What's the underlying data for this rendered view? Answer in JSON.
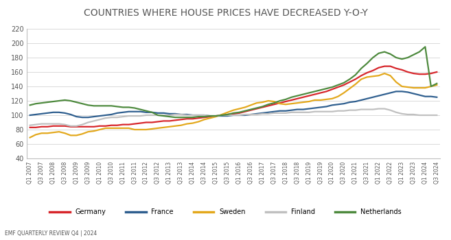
{
  "chart_data": {
    "type": "line",
    "title": "COUNTRIES WHERE HOUSE PRICES HAVE DECREASED Y-O-Y",
    "footer": "EMF QUARTERLY REVIEW Q4 | 2024",
    "categories": [
      "Q1 2007",
      null,
      "Q3 2007",
      null,
      "Q1 2008",
      null,
      "Q3 2008",
      null,
      "Q1 2009",
      null,
      "Q3 2009",
      null,
      "Q1 2010",
      null,
      "Q3 2010",
      null,
      "Q1 2011",
      null,
      "Q3 2011",
      null,
      "Q1 2012",
      null,
      "Q3 2012",
      null,
      "Q1 2013",
      null,
      "Q3 2013",
      null,
      "Q1 2014",
      null,
      "Q3 2014",
      null,
      "Q1 2015",
      null,
      "Q3 2015",
      null,
      "Q1 2016",
      null,
      "Q3 2016",
      null,
      "Q1 2017",
      null,
      "Q3 2017",
      null,
      "Q1 2018",
      null,
      "Q3 2018",
      null,
      "Q1 2019",
      null,
      "Q3 2019",
      null,
      "Q1 2020",
      null,
      "Q3 2020",
      null,
      "Q1 2021",
      null,
      "Q3 2021",
      null,
      "Q1 2022",
      null,
      "Q3 2022",
      null,
      "Q1 2023",
      null,
      "Q3 2023",
      null,
      "Q1 2024",
      null,
      "Q3 2024"
    ],
    "series": [
      {
        "name": "Germany",
        "color": "#d7262b",
        "values": [
          83,
          83,
          84,
          84,
          85,
          85,
          85,
          84,
          84,
          84,
          84,
          84,
          85,
          85,
          86,
          86,
          87,
          87,
          88,
          89,
          90,
          90,
          91,
          92,
          92,
          93,
          94,
          95,
          95,
          96,
          97,
          98,
          99,
          100,
          101,
          102,
          103,
          105,
          107,
          109,
          111,
          113,
          115,
          117,
          119,
          121,
          123,
          125,
          127,
          129,
          131,
          133,
          136,
          139,
          142,
          146,
          150,
          155,
          159,
          162,
          166,
          168,
          168,
          165,
          163,
          160,
          158,
          157,
          157,
          158,
          160
        ]
      },
      {
        "name": "France",
        "color": "#2f5f8f",
        "values": [
          100,
          101,
          102,
          103,
          104,
          104,
          103,
          101,
          98,
          97,
          97,
          98,
          99,
          100,
          101,
          103,
          104,
          105,
          105,
          105,
          104,
          104,
          103,
          103,
          102,
          102,
          101,
          101,
          100,
          100,
          100,
          99,
          99,
          99,
          99,
          100,
          100,
          100,
          101,
          102,
          103,
          104,
          105,
          106,
          106,
          107,
          108,
          108,
          109,
          110,
          111,
          112,
          114,
          115,
          116,
          118,
          119,
          121,
          123,
          125,
          127,
          129,
          131,
          133,
          133,
          132,
          130,
          128,
          126,
          126,
          125
        ]
      },
      {
        "name": "Sweden",
        "color": "#e3a81c",
        "values": [
          69,
          73,
          75,
          75,
          76,
          77,
          75,
          72,
          72,
          74,
          77,
          78,
          80,
          82,
          82,
          82,
          82,
          82,
          80,
          80,
          80,
          81,
          82,
          83,
          84,
          85,
          86,
          88,
          89,
          91,
          94,
          96,
          98,
          101,
          104,
          107,
          109,
          111,
          114,
          117,
          118,
          120,
          119,
          116,
          115,
          116,
          117,
          118,
          119,
          121,
          121,
          122,
          123,
          126,
          131,
          137,
          143,
          150,
          153,
          154,
          155,
          158,
          155,
          146,
          140,
          139,
          138,
          138,
          138,
          140,
          142
        ]
      },
      {
        "name": "Finland",
        "color": "#c0c0c0",
        "values": [
          86,
          87,
          88,
          88,
          88,
          88,
          87,
          85,
          85,
          87,
          90,
          92,
          94,
          96,
          97,
          97,
          98,
          99,
          99,
          99,
          100,
          100,
          100,
          100,
          100,
          101,
          101,
          100,
          100,
          100,
          100,
          99,
          99,
          100,
          100,
          100,
          100,
          101,
          101,
          101,
          102,
          102,
          103,
          103,
          103,
          104,
          104,
          104,
          104,
          105,
          105,
          105,
          105,
          106,
          106,
          107,
          107,
          108,
          108,
          108,
          109,
          109,
          107,
          104,
          102,
          101,
          101,
          100,
          100,
          100,
          100
        ]
      },
      {
        "name": "Netherlands",
        "color": "#4e8a3e",
        "values": [
          114,
          116,
          117,
          118,
          119,
          120,
          121,
          120,
          118,
          116,
          114,
          113,
          113,
          113,
          113,
          112,
          111,
          111,
          110,
          108,
          106,
          104,
          100,
          99,
          98,
          97,
          97,
          97,
          97,
          98,
          98,
          99,
          99,
          100,
          101,
          103,
          104,
          106,
          108,
          110,
          112,
          115,
          117,
          120,
          122,
          125,
          127,
          129,
          131,
          133,
          135,
          137,
          139,
          142,
          145,
          150,
          156,
          165,
          172,
          180,
          186,
          188,
          185,
          180,
          178,
          180,
          184,
          188,
          195,
          140,
          144
        ]
      }
    ],
    "ylim": [
      40,
      220
    ],
    "yticks": [
      40,
      60,
      80,
      100,
      120,
      140,
      160,
      180,
      200,
      220
    ],
    "grid": true,
    "legend": "bottom"
  }
}
